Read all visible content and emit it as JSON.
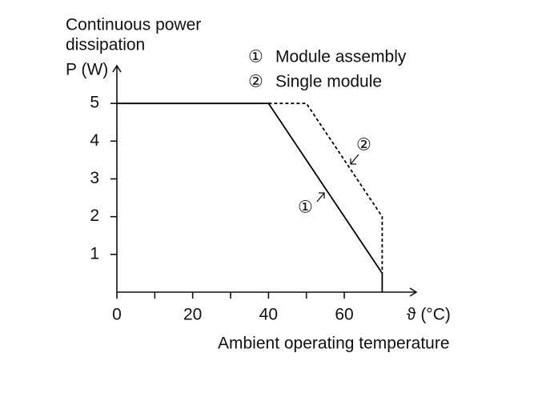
{
  "chart_data": {
    "type": "line",
    "y_label": [
      "Continuous power",
      "dissipation",
      "P (W)"
    ],
    "x_unit": "ϑ (°C)",
    "x_label": "Ambient operating temperature",
    "xlim": [
      0,
      79
    ],
    "xticks": [
      0,
      20,
      40,
      60
    ],
    "xminor_ticks": [
      10,
      30,
      50
    ],
    "ylim": [
      0,
      6
    ],
    "yticks": [
      1,
      2,
      3,
      4,
      5
    ],
    "series": [
      {
        "name": "Module assembly",
        "marker": "①",
        "color": "#000000",
        "style": "solid",
        "x": [
          0,
          40,
          70,
          70
        ],
        "values": [
          5,
          5,
          0.5,
          0
        ]
      },
      {
        "name": "Single module",
        "marker": "②",
        "color": "#000000",
        "style": "dashed",
        "x": [
          40,
          50,
          70,
          70
        ],
        "values": [
          5,
          5,
          2,
          0.5
        ]
      }
    ]
  }
}
